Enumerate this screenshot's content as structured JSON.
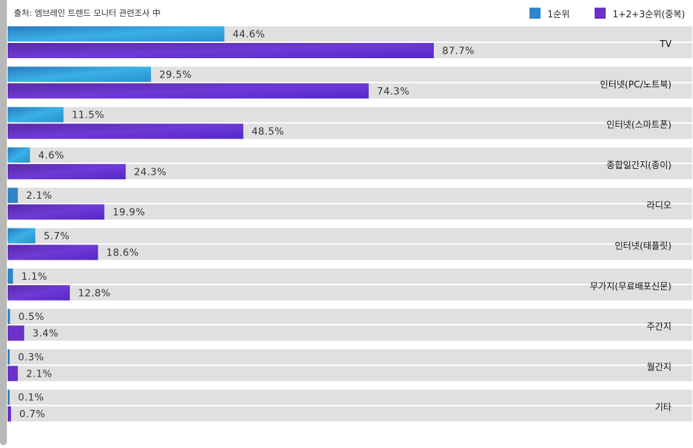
{
  "source_note": "출처: 엠브레인 트렌드 모니터 관련조사 中",
  "colors": {
    "first": "#2e86c8",
    "total": "#6a32c8",
    "track": "#e0e0e0"
  },
  "chart_data": {
    "type": "bar",
    "orientation": "horizontal",
    "categories": [
      "TV",
      "인터넷(PC/노트북)",
      "인터넷(스마트폰)",
      "종합일간지(종이)",
      "라디오",
      "인터넷(태플릿)",
      "무가지(무료배포신문)",
      "주간지",
      "월간지",
      "기타"
    ],
    "series": [
      {
        "name": "1순위",
        "values": [
          44.6,
          29.5,
          11.5,
          4.6,
          2.1,
          5.7,
          1.1,
          0.5,
          0.3,
          0.1
        ],
        "color": "#2e86c8"
      },
      {
        "name": "1+2+3순위(중복)",
        "values": [
          87.7,
          74.3,
          48.5,
          24.3,
          19.9,
          18.6,
          12.8,
          3.4,
          2.1,
          0.7
        ],
        "color": "#6a32c8"
      }
    ],
    "value_suffix": "%",
    "xlim": [
      0,
      100
    ],
    "legend_position": "top-right",
    "grid": false
  }
}
